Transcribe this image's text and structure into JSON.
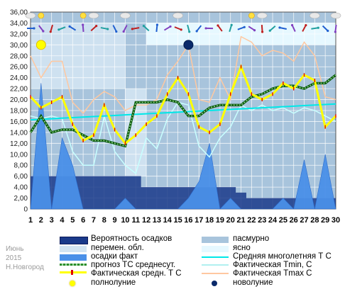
{
  "chart_data": {
    "type": "line",
    "x": [
      1,
      2,
      3,
      4,
      5,
      6,
      7,
      8,
      9,
      10,
      11,
      12,
      13,
      14,
      15,
      16,
      17,
      18,
      19,
      20,
      21,
      22,
      23,
      24,
      25,
      26,
      27,
      28,
      29,
      30
    ],
    "ylim": [
      0,
      36
    ],
    "yticks": [
      "0",
      "2,00",
      "4,00",
      "6,00",
      "8,00",
      "10,00",
      "12,00",
      "14,00",
      "16,00",
      "18,00",
      "20,00",
      "22,00",
      "24,00",
      "26,00",
      "28,00",
      "30,00",
      "32,00",
      "34,00",
      "36,00"
    ],
    "series": [
      {
        "name": "Вероятность осадков",
        "color": "#1a3a8a",
        "values": [
          6,
          6,
          6,
          6,
          6,
          6,
          6,
          6,
          6,
          6,
          6,
          4,
          4,
          4,
          4,
          4,
          4,
          4,
          4,
          4,
          3,
          2,
          2,
          2,
          2,
          2,
          2,
          2,
          2,
          2
        ]
      },
      {
        "name": "осадки факт",
        "color": "#4a90e8",
        "values": [
          0,
          23,
          0,
          13,
          8,
          0,
          0,
          0,
          0,
          2,
          0,
          0,
          0,
          0,
          0,
          2,
          5,
          12,
          0,
          2,
          0,
          0,
          0,
          0,
          2,
          0,
          9,
          0,
          10,
          0
        ]
      },
      {
        "name": "прогноз ТС среднесут.",
        "color": "#2a8a2a",
        "values": [
          14,
          17,
          14,
          14.5,
          14.5,
          13.5,
          12.5,
          12.5,
          12,
          11.5,
          19.5,
          19.5,
          19.5,
          20,
          19.5,
          17,
          17,
          18.5,
          19,
          19,
          19,
          20.5,
          21,
          22,
          22.5,
          22.5,
          22,
          23,
          23,
          24.5
        ]
      },
      {
        "name": "Фактическая средн. Т С",
        "color": "#ffff00",
        "values": [
          20.5,
          18.5,
          19.5,
          20.5,
          15.5,
          12.5,
          13.5,
          19,
          14.5,
          12,
          13.5,
          15.5,
          17,
          21,
          24,
          21,
          15,
          14,
          15.5,
          21,
          26,
          21,
          20,
          21,
          23,
          22,
          24.5,
          23.5,
          15,
          17
        ]
      },
      {
        "name": "Фактическая Tmin, С",
        "color": "#c8ffff",
        "values": [
          17,
          16.5,
          17,
          16.5,
          10.5,
          8,
          8,
          17,
          10.5,
          8,
          6.5,
          13,
          11,
          16.5,
          19.5,
          19,
          11.5,
          9.5,
          13,
          15,
          19,
          18,
          19,
          18,
          18.5,
          17.5,
          18.5,
          18,
          17,
          16
        ]
      },
      {
        "name": "Фактическая Tmax C",
        "color": "#ffc8a0",
        "values": [
          28,
          24,
          27,
          27,
          19.5,
          17.5,
          20,
          21.5,
          20.5,
          18,
          19,
          19,
          20,
          24.5,
          27,
          30,
          20,
          19.5,
          24,
          20,
          31.5,
          30.5,
          28,
          29,
          28.5,
          27,
          30.5,
          28,
          20.5,
          20
        ]
      },
      {
        "name": "Средняя многолетняя Т С",
        "color": "#00e8e8",
        "values": [
          16.3,
          16.4,
          16.5,
          16.6,
          16.7,
          16.8,
          16.9,
          17.0,
          17.1,
          17.2,
          17.3,
          17.4,
          17.5,
          17.6,
          17.7,
          17.8,
          17.9,
          18.0,
          18.1,
          18.2,
          18.3,
          18.4,
          18.5,
          18.6,
          18.7,
          18.8,
          18.9,
          19.0,
          19.1,
          19.2
        ]
      }
    ],
    "cloud_bands": [
      {
        "name": "пасмурно",
        "color": "#a8c4dc"
      },
      {
        "name": "перемен. обл.",
        "color": "#d2e4f2"
      },
      {
        "name": "ясно",
        "color": "#e6f8ff"
      }
    ],
    "moon_phases": [
      {
        "name": "полнолуние",
        "day": 2,
        "value": 30,
        "color": "#ffff00"
      },
      {
        "name": "новолуние",
        "day": 16,
        "value": 30,
        "color": "#0a2a6a"
      }
    ],
    "legend": [
      "Вероятность осадков",
      "пасмурно",
      "перемен. обл.",
      "ясно",
      "осадки факт",
      "Средняя многолетняя Т С",
      "прогноз ТС среднесут.",
      "Фактическая Tmin, С",
      "Фактическая средн. Т С",
      "Фактическая Tmax C",
      "полнолуние",
      "новолуние"
    ],
    "legend_position": "bottom",
    "grid": true
  },
  "watermark": {
    "month": "Июнь",
    "year": "2015",
    "city": "Н.Новгород"
  },
  "colors": {
    "overcast": "#a8c4dc",
    "variable": "#d2e4f2",
    "clear": "#e6f8ff",
    "prob": "#1a3a8a",
    "precip": "#4a90e8",
    "forecast": "#2a8a2a",
    "actual": "#ffff00",
    "tmin": "#c8ffff",
    "tmax": "#ffc8a0",
    "norm": "#00e8e8",
    "full_moon": "#ffff00",
    "new_moon": "#0a2a6a"
  }
}
